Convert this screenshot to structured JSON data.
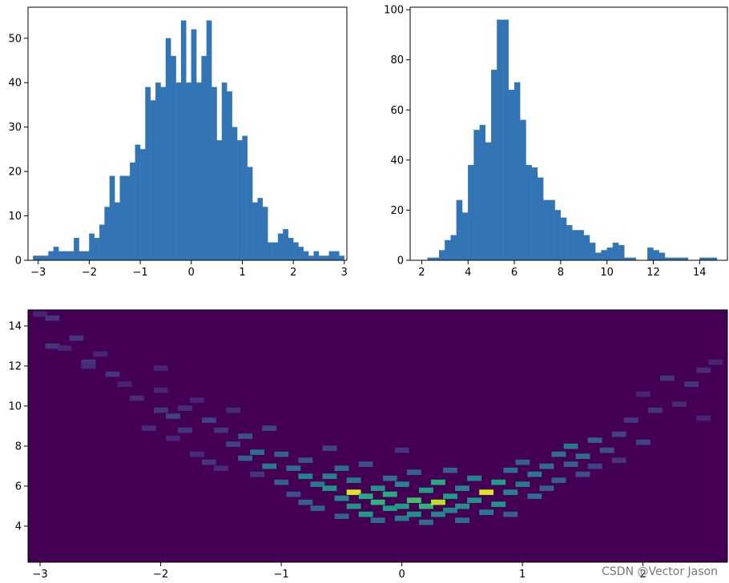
{
  "chart_data": [
    {
      "type": "bar",
      "id": "hist-x",
      "title": "",
      "xlabel": "",
      "ylabel": "",
      "xlim": [
        -3.2,
        3.05
      ],
      "ylim": [
        0,
        57
      ],
      "xticks": [
        -3,
        -2,
        -1,
        0,
        1,
        2,
        3
      ],
      "yticks": [
        0,
        10,
        20,
        30,
        40,
        50
      ],
      "bin_start": -3.1,
      "bin_width": 0.1,
      "values": [
        1,
        1,
        1,
        2,
        3,
        2,
        2,
        2,
        5,
        2,
        2,
        6,
        5,
        8,
        12,
        19,
        13,
        19,
        19,
        22,
        26,
        25,
        39,
        36,
        40,
        39,
        50,
        46,
        40,
        54,
        40,
        52,
        40,
        46,
        54,
        39,
        27,
        40,
        38,
        30,
        27,
        28,
        21,
        13,
        14,
        12,
        4,
        4,
        6,
        7,
        5,
        4,
        3,
        2,
        1,
        2,
        1,
        1,
        2,
        2,
        1,
        0
      ]
    },
    {
      "type": "bar",
      "id": "hist-y",
      "title": "",
      "xlabel": "",
      "ylabel": "",
      "xlim": [
        1.5,
        15.2
      ],
      "ylim": [
        0,
        101
      ],
      "xticks": [
        2,
        4,
        6,
        8,
        10,
        12,
        14
      ],
      "yticks": [
        0,
        20,
        40,
        60,
        80,
        100
      ],
      "bin_start": 2.25,
      "bin_width": 0.25,
      "values": [
        1,
        1,
        4,
        8,
        10,
        24,
        19,
        38,
        52,
        54,
        47,
        76,
        96,
        96,
        68,
        71,
        56,
        38,
        37,
        33,
        24,
        24,
        20,
        17,
        14,
        12,
        12,
        10,
        7,
        3,
        4,
        5,
        7,
        6,
        1,
        1,
        0,
        0,
        5,
        4,
        3,
        1,
        1,
        1,
        1,
        0,
        0,
        1,
        1,
        1
      ]
    },
    {
      "type": "heatmap",
      "id": "hist2d",
      "title": "",
      "xlabel": "",
      "ylabel": "",
      "xlim": [
        -3.1,
        2.7
      ],
      "ylim": [
        2.2,
        14.8
      ],
      "xticks": [
        -3,
        -2,
        -1,
        0,
        1,
        2
      ],
      "yticks": [
        4,
        6,
        8,
        10,
        12,
        14
      ],
      "colormap": "viridis",
      "bins": 50,
      "cells": [
        [
          -3.0,
          14.6,
          0.1
        ],
        [
          -2.9,
          14.4,
          0.15
        ],
        [
          -2.9,
          13.0,
          0.15
        ],
        [
          -2.8,
          12.9,
          0.1
        ],
        [
          -2.7,
          13.4,
          0.15
        ],
        [
          -2.6,
          12.2,
          0.15
        ],
        [
          -2.6,
          12.0,
          0.12
        ],
        [
          -2.5,
          12.6,
          0.1
        ],
        [
          -2.4,
          11.6,
          0.15
        ],
        [
          -2.3,
          11.1,
          0.1
        ],
        [
          -2.2,
          10.4,
          0.12
        ],
        [
          -2.0,
          11.9,
          0.1
        ],
        [
          -2.0,
          10.8,
          0.1
        ],
        [
          -2.0,
          9.8,
          0.15
        ],
        [
          -2.1,
          8.9,
          0.12
        ],
        [
          -1.9,
          8.4,
          0.1
        ],
        [
          -1.9,
          9.5,
          0.2
        ],
        [
          -1.8,
          9.9,
          0.12
        ],
        [
          -1.8,
          8.8,
          0.15
        ],
        [
          -1.7,
          7.6,
          0.12
        ],
        [
          -1.7,
          10.3,
          0.1
        ],
        [
          -1.6,
          9.3,
          0.2
        ],
        [
          -1.5,
          8.8,
          0.15
        ],
        [
          -1.6,
          7.2,
          0.15
        ],
        [
          -1.5,
          6.9,
          0.12
        ],
        [
          -1.4,
          8.1,
          0.2
        ],
        [
          -1.4,
          9.8,
          0.12
        ],
        [
          -1.3,
          8.5,
          0.25
        ],
        [
          -1.3,
          7.4,
          0.3
        ],
        [
          -1.2,
          7.7,
          0.35
        ],
        [
          -1.2,
          6.6,
          0.15
        ],
        [
          -1.1,
          8.9,
          0.2
        ],
        [
          -1.1,
          7.0,
          0.4
        ],
        [
          -1.0,
          6.2,
          0.3
        ],
        [
          -1.0,
          7.6,
          0.3
        ],
        [
          -0.9,
          6.9,
          0.35
        ],
        [
          -0.9,
          5.6,
          0.25
        ],
        [
          -0.8,
          6.5,
          0.45
        ],
        [
          -0.8,
          5.2,
          0.3
        ],
        [
          -0.8,
          7.3,
          0.25
        ],
        [
          -0.7,
          6.1,
          0.4
        ],
        [
          -0.7,
          4.9,
          0.3
        ],
        [
          -0.6,
          7.9,
          0.2
        ],
        [
          -0.6,
          6.5,
          0.45
        ],
        [
          -0.6,
          5.9,
          0.5
        ],
        [
          -0.5,
          5.4,
          0.45
        ],
        [
          -0.5,
          4.5,
          0.3
        ],
        [
          -0.5,
          6.9,
          0.35
        ],
        [
          -0.4,
          5.7,
          0.95
        ],
        [
          -0.4,
          5.0,
          0.5
        ],
        [
          -0.4,
          6.3,
          0.4
        ],
        [
          -0.3,
          4.6,
          0.55
        ],
        [
          -0.3,
          5.5,
          0.6
        ],
        [
          -0.3,
          7.1,
          0.25
        ],
        [
          -0.2,
          4.3,
          0.35
        ],
        [
          -0.2,
          5.9,
          0.5
        ],
        [
          -0.2,
          5.2,
          0.65
        ],
        [
          -0.1,
          4.9,
          0.55
        ],
        [
          -0.1,
          6.4,
          0.35
        ],
        [
          -0.1,
          5.6,
          0.6
        ],
        [
          0.0,
          5.0,
          0.55
        ],
        [
          0.0,
          4.4,
          0.4
        ],
        [
          0.0,
          6.1,
          0.45
        ],
        [
          0.0,
          7.8,
          0.15
        ],
        [
          0.1,
          5.3,
          0.7
        ],
        [
          0.1,
          4.6,
          0.5
        ],
        [
          0.1,
          6.7,
          0.3
        ],
        [
          0.2,
          5.0,
          0.65
        ],
        [
          0.2,
          5.8,
          0.55
        ],
        [
          0.2,
          4.2,
          0.35
        ],
        [
          0.3,
          5.2,
          0.9
        ],
        [
          0.3,
          6.2,
          0.6
        ],
        [
          0.3,
          4.6,
          0.45
        ],
        [
          0.4,
          5.5,
          0.55
        ],
        [
          0.4,
          4.8,
          0.45
        ],
        [
          0.4,
          6.8,
          0.3
        ],
        [
          0.5,
          5.9,
          0.45
        ],
        [
          0.5,
          5.0,
          0.5
        ],
        [
          0.5,
          4.3,
          0.35
        ],
        [
          0.6,
          5.3,
          0.5
        ],
        [
          0.6,
          6.4,
          0.45
        ],
        [
          0.7,
          5.7,
          0.95
        ],
        [
          0.7,
          4.7,
          0.4
        ],
        [
          0.8,
          6.2,
          0.55
        ],
        [
          0.8,
          5.1,
          0.5
        ],
        [
          0.9,
          5.7,
          0.45
        ],
        [
          0.9,
          6.8,
          0.35
        ],
        [
          0.9,
          4.6,
          0.3
        ],
        [
          1.0,
          6.1,
          0.4
        ],
        [
          1.0,
          7.2,
          0.3
        ],
        [
          1.1,
          5.5,
          0.35
        ],
        [
          1.1,
          6.6,
          0.4
        ],
        [
          1.2,
          7.0,
          0.35
        ],
        [
          1.2,
          5.9,
          0.3
        ],
        [
          1.3,
          7.6,
          0.35
        ],
        [
          1.3,
          6.3,
          0.3
        ],
        [
          1.4,
          8.0,
          0.4
        ],
        [
          1.4,
          7.1,
          0.3
        ],
        [
          1.5,
          7.5,
          0.35
        ],
        [
          1.5,
          6.6,
          0.25
        ],
        [
          1.6,
          8.3,
          0.3
        ],
        [
          1.6,
          7.0,
          0.2
        ],
        [
          1.7,
          7.8,
          0.25
        ],
        [
          1.8,
          8.6,
          0.2
        ],
        [
          1.8,
          7.3,
          0.15
        ],
        [
          1.9,
          9.3,
          0.15
        ],
        [
          2.0,
          8.2,
          0.2
        ],
        [
          2.0,
          10.6,
          0.1
        ],
        [
          2.1,
          9.8,
          0.15
        ],
        [
          2.2,
          11.4,
          0.15
        ],
        [
          2.3,
          10.1,
          0.12
        ],
        [
          2.4,
          11.1,
          0.15
        ],
        [
          2.5,
          11.8,
          0.12
        ],
        [
          2.6,
          12.2,
          0.1
        ],
        [
          2.5,
          9.4,
          0.1
        ]
      ]
    }
  ],
  "watermark": "CSDN @Vector Jason"
}
